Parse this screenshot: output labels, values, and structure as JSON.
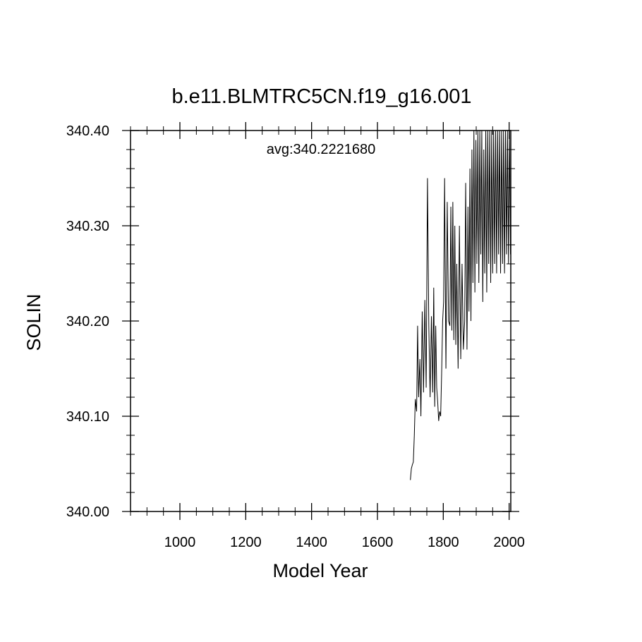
{
  "chart_data": {
    "type": "line",
    "title": "b.e11.BLMTRC5CN.f19_g16.001",
    "xlabel": "Model Year",
    "ylabel": "SOLIN",
    "annotation": "avg:340.2221680",
    "xlim": [
      850,
      2005
    ],
    "ylim": [
      340.0,
      340.4
    ],
    "x_ticks": [
      {
        "value": 1000,
        "label": "1000"
      },
      {
        "value": 1200,
        "label": "1200"
      },
      {
        "value": 1400,
        "label": "1400"
      },
      {
        "value": 1600,
        "label": "1600"
      },
      {
        "value": 1800,
        "label": "1800"
      },
      {
        "value": 2000,
        "label": "2000"
      }
    ],
    "y_ticks": [
      {
        "value": 340.0,
        "label": "340.00"
      },
      {
        "value": 340.1,
        "label": "340.10"
      },
      {
        "value": 340.2,
        "label": "340.20"
      },
      {
        "value": 340.3,
        "label": "340.30"
      },
      {
        "value": 340.4,
        "label": "340.40"
      }
    ],
    "grid": false,
    "line_color": "#000000",
    "series": [
      {
        "x": [
          1700,
          1703,
          1706,
          1709,
          1712,
          1715,
          1719,
          1722,
          1725,
          1729,
          1732,
          1736,
          1740,
          1744,
          1748,
          1752,
          1756,
          1760,
          1764,
          1768,
          1771,
          1774,
          1777,
          1780,
          1783,
          1786,
          1789,
          1792,
          1795,
          1798,
          1801,
          1804,
          1808,
          1812,
          1816,
          1820,
          1823,
          1826,
          1829,
          1832,
          1835,
          1838,
          1841,
          1845,
          1849,
          1853,
          1857,
          1861,
          1865,
          1868,
          1872,
          1875,
          1878,
          1881,
          1884,
          1887,
          1890,
          1893,
          1896,
          1899,
          1902,
          1905,
          1908,
          1911,
          1914,
          1917,
          1920,
          1923,
          1926,
          1929,
          1932,
          1935,
          1938,
          1941,
          1944,
          1947,
          1950,
          1953,
          1956,
          1959,
          1962,
          1965,
          1968,
          1971,
          1974,
          1977,
          1980,
          1983,
          1986,
          1989,
          1992,
          1995,
          1998,
          2001,
          2004
        ],
        "y": [
          340.033,
          340.045,
          340.049,
          340.052,
          340.08,
          340.118,
          340.105,
          340.195,
          340.12,
          340.16,
          340.1,
          340.21,
          340.125,
          340.222,
          340.13,
          340.35,
          340.195,
          340.12,
          340.205,
          340.125,
          340.235,
          340.11,
          340.195,
          340.13,
          340.115,
          340.095,
          340.105,
          340.1,
          340.145,
          340.2,
          340.22,
          340.35,
          340.15,
          340.325,
          340.2,
          340.195,
          340.32,
          340.19,
          340.325,
          340.18,
          340.3,
          340.175,
          340.26,
          340.15,
          340.3,
          340.16,
          340.26,
          340.17,
          340.2,
          340.345,
          340.17,
          340.32,
          340.21,
          340.36,
          340.2,
          340.38,
          340.24,
          340.4,
          340.23,
          340.39,
          340.26,
          340.4,
          340.24,
          340.4,
          340.27,
          340.4,
          340.22,
          340.38,
          340.25,
          340.4,
          340.23,
          340.4,
          340.26,
          340.4,
          340.24,
          340.4,
          340.25,
          340.4,
          340.26,
          340.4,
          340.25,
          340.4,
          340.27,
          340.4,
          340.25,
          340.4,
          340.26,
          340.4,
          340.25,
          340.4,
          340.27,
          340.4,
          340.26,
          340.4,
          340.27
        ]
      }
    ]
  }
}
